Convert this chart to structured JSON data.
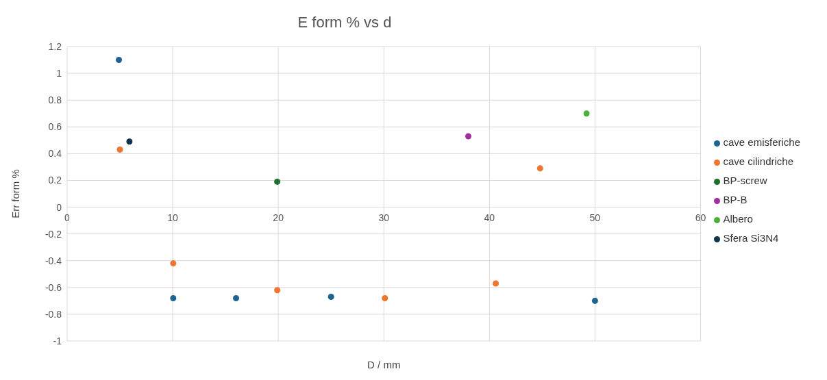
{
  "chart_data": {
    "type": "scatter",
    "title": "E form % vs d",
    "xlabel": "D / mm",
    "ylabel": "Err form %",
    "xlim": [
      0,
      60
    ],
    "xticks": [
      0,
      10,
      20,
      30,
      40,
      50,
      60
    ],
    "ylim": [
      -1,
      1.2
    ],
    "yticks": [
      -1,
      -0.8,
      -0.6,
      -0.4,
      -0.2,
      0,
      0.2,
      0.4,
      0.6,
      0.8,
      1,
      1.2
    ],
    "grid": true,
    "legend": "right",
    "marker": "circle",
    "series": [
      {
        "name": "cave emisferiche",
        "color": "#1f6391",
        "x": [
          4.9,
          10.05,
          16,
          25,
          50
        ],
        "values": [
          1.1,
          -0.68,
          -0.68,
          -0.67,
          -0.7
        ]
      },
      {
        "name": "cave cilindriche",
        "color": "#ed7631",
        "x": [
          5,
          10.05,
          19.9,
          30.1,
          40.6,
          44.8
        ],
        "values": [
          0.43,
          -0.42,
          -0.62,
          -0.68,
          -0.57,
          0.29
        ]
      },
      {
        "name": "BP-screw",
        "color": "#1e6e2c",
        "x": [
          19.9
        ],
        "values": [
          0.19
        ]
      },
      {
        "name": "BP-B",
        "color": "#a0309b",
        "x": [
          38
        ],
        "values": [
          0.53
        ]
      },
      {
        "name": "Albero",
        "color": "#4eae3a",
        "x": [
          49.2
        ],
        "values": [
          0.7
        ]
      },
      {
        "name": "Sfera Si3N4",
        "color": "#12344f",
        "x": [
          5.9
        ],
        "values": [
          0.49
        ]
      }
    ]
  }
}
